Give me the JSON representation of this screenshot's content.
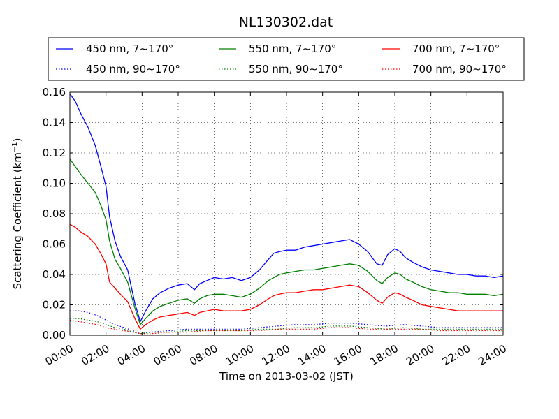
{
  "chart_data": {
    "type": "line",
    "title": "NL130302.dat",
    "xlabel": "Time on 2013-03-02 (JST)",
    "ylabel_main": "Scattering Coefficient (km",
    "ylabel_sup": "−1",
    "ylabel_close": ")",
    "xlim": [
      0,
      24
    ],
    "ylim": [
      0,
      0.16
    ],
    "x_ticks": [
      0,
      2,
      4,
      6,
      8,
      10,
      12,
      14,
      16,
      18,
      20,
      22,
      24
    ],
    "x_tick_labels": [
      "00:00",
      "02:00",
      "04:00",
      "06:00",
      "08:00",
      "10:00",
      "12:00",
      "14:00",
      "16:00",
      "18:00",
      "20:00",
      "22:00",
      "24:00"
    ],
    "y_ticks": [
      0,
      0.02,
      0.04,
      0.06,
      0.08,
      0.1,
      0.12,
      0.14,
      0.16
    ],
    "y_tick_labels": [
      "0.00",
      "0.02",
      "0.04",
      "0.06",
      "0.08",
      "0.10",
      "0.12",
      "0.14",
      "0.16"
    ],
    "grid": true,
    "legend_position": "top (above plot), 3 columns",
    "series": [
      {
        "name": "450 nm, 7∼170°",
        "color": "#0000ff",
        "style": "solid",
        "x": [
          0,
          0.3,
          0.6,
          1.0,
          1.4,
          1.7,
          2.0,
          2.2,
          2.5,
          2.8,
          3.2,
          3.6,
          3.9,
          4.2,
          4.6,
          5.0,
          5.5,
          6.0,
          6.5,
          6.9,
          7.2,
          7.6,
          8.0,
          8.5,
          9.0,
          9.5,
          10.0,
          10.5,
          11.0,
          11.3,
          11.6,
          12.0,
          12.5,
          13.0,
          13.5,
          14.0,
          14.5,
          15.0,
          15.5,
          16.0,
          16.5,
          17.0,
          17.3,
          17.6,
          18.0,
          18.3,
          18.6,
          19.0,
          19.5,
          20.0,
          20.5,
          21.0,
          21.5,
          22.0,
          22.5,
          23.0,
          23.5,
          24.0
        ],
        "y": [
          0.159,
          0.154,
          0.146,
          0.137,
          0.125,
          0.112,
          0.098,
          0.078,
          0.062,
          0.052,
          0.043,
          0.021,
          0.009,
          0.016,
          0.024,
          0.028,
          0.031,
          0.033,
          0.034,
          0.03,
          0.034,
          0.036,
          0.038,
          0.037,
          0.038,
          0.036,
          0.038,
          0.043,
          0.05,
          0.054,
          0.055,
          0.056,
          0.056,
          0.058,
          0.059,
          0.06,
          0.061,
          0.062,
          0.063,
          0.06,
          0.055,
          0.047,
          0.046,
          0.053,
          0.057,
          0.055,
          0.051,
          0.048,
          0.045,
          0.043,
          0.042,
          0.041,
          0.04,
          0.04,
          0.039,
          0.039,
          0.038,
          0.039
        ]
      },
      {
        "name": "450 nm, 90∼170°",
        "color": "#0000ff",
        "style": "dotted",
        "x": [
          0,
          0.5,
          1.0,
          1.5,
          2.0,
          2.5,
          3.0,
          3.5,
          3.9,
          4.5,
          5.5,
          6.5,
          7.5,
          8.5,
          9.5,
          10.5,
          11.5,
          12.5,
          13.5,
          14.5,
          15.5,
          16.5,
          17.5,
          18.5,
          19.5,
          20.5,
          21.5,
          22.5,
          23.5,
          24.0
        ],
        "y": [
          0.016,
          0.016,
          0.015,
          0.013,
          0.01,
          0.007,
          0.005,
          0.003,
          0.001,
          0.002,
          0.003,
          0.004,
          0.004,
          0.004,
          0.004,
          0.005,
          0.006,
          0.007,
          0.007,
          0.008,
          0.008,
          0.007,
          0.006,
          0.007,
          0.006,
          0.005,
          0.005,
          0.005,
          0.005,
          0.005
        ]
      },
      {
        "name": "550 nm, 7∼170°",
        "color": "#008000",
        "style": "solid",
        "x": [
          0,
          0.3,
          0.6,
          1.0,
          1.4,
          1.7,
          2.0,
          2.2,
          2.5,
          2.8,
          3.2,
          3.6,
          3.9,
          4.2,
          4.6,
          5.0,
          5.5,
          6.0,
          6.5,
          6.9,
          7.2,
          7.6,
          8.0,
          8.5,
          9.0,
          9.5,
          10.0,
          10.5,
          11.0,
          11.3,
          11.6,
          12.0,
          12.5,
          13.0,
          13.5,
          14.0,
          14.5,
          15.0,
          15.5,
          16.0,
          16.5,
          17.0,
          17.3,
          17.6,
          18.0,
          18.3,
          18.6,
          19.0,
          19.5,
          20.0,
          20.5,
          21.0,
          21.5,
          22.0,
          22.5,
          23.0,
          23.5,
          24.0
        ],
        "y": [
          0.116,
          0.111,
          0.106,
          0.1,
          0.094,
          0.086,
          0.076,
          0.062,
          0.05,
          0.044,
          0.035,
          0.018,
          0.007,
          0.011,
          0.016,
          0.019,
          0.021,
          0.023,
          0.024,
          0.021,
          0.024,
          0.026,
          0.027,
          0.027,
          0.026,
          0.025,
          0.027,
          0.031,
          0.036,
          0.038,
          0.04,
          0.041,
          0.042,
          0.043,
          0.043,
          0.044,
          0.045,
          0.046,
          0.047,
          0.046,
          0.042,
          0.036,
          0.034,
          0.038,
          0.041,
          0.04,
          0.037,
          0.035,
          0.032,
          0.03,
          0.029,
          0.028,
          0.028,
          0.027,
          0.027,
          0.027,
          0.026,
          0.027
        ]
      },
      {
        "name": "550 nm, 90∼170°",
        "color": "#008000",
        "style": "dotted",
        "x": [
          0,
          0.5,
          1.0,
          1.5,
          2.0,
          2.5,
          3.0,
          3.5,
          3.9,
          4.5,
          5.5,
          6.5,
          7.5,
          8.5,
          9.5,
          10.5,
          11.5,
          12.5,
          13.5,
          14.5,
          15.5,
          16.5,
          17.5,
          18.5,
          19.5,
          20.5,
          21.5,
          22.5,
          23.5,
          24.0
        ],
        "y": [
          0.011,
          0.011,
          0.01,
          0.009,
          0.007,
          0.005,
          0.004,
          0.002,
          0.001,
          0.002,
          0.002,
          0.003,
          0.003,
          0.003,
          0.003,
          0.004,
          0.004,
          0.005,
          0.005,
          0.006,
          0.006,
          0.005,
          0.004,
          0.005,
          0.004,
          0.004,
          0.004,
          0.004,
          0.004,
          0.004
        ]
      },
      {
        "name": "700 nm, 7∼170°",
        "color": "#ff0000",
        "style": "solid",
        "x": [
          0,
          0.3,
          0.6,
          1.0,
          1.4,
          1.7,
          2.0,
          2.2,
          2.5,
          2.8,
          3.2,
          3.6,
          3.9,
          4.2,
          4.6,
          5.0,
          5.5,
          6.0,
          6.5,
          6.9,
          7.2,
          7.6,
          8.0,
          8.5,
          9.0,
          9.5,
          10.0,
          10.5,
          11.0,
          11.3,
          11.6,
          12.0,
          12.5,
          13.0,
          13.5,
          14.0,
          14.5,
          15.0,
          15.5,
          16.0,
          16.5,
          17.0,
          17.3,
          17.6,
          18.0,
          18.3,
          18.6,
          19.0,
          19.5,
          20.0,
          20.5,
          21.0,
          21.5,
          22.0,
          22.5,
          23.0,
          23.5,
          24.0
        ],
        "y": [
          0.073,
          0.071,
          0.068,
          0.065,
          0.06,
          0.054,
          0.047,
          0.035,
          0.031,
          0.027,
          0.022,
          0.011,
          0.004,
          0.007,
          0.01,
          0.012,
          0.013,
          0.014,
          0.015,
          0.013,
          0.015,
          0.016,
          0.017,
          0.016,
          0.016,
          0.016,
          0.017,
          0.02,
          0.024,
          0.026,
          0.027,
          0.028,
          0.028,
          0.029,
          0.03,
          0.03,
          0.031,
          0.032,
          0.033,
          0.032,
          0.028,
          0.023,
          0.021,
          0.025,
          0.028,
          0.027,
          0.025,
          0.023,
          0.02,
          0.019,
          0.018,
          0.017,
          0.016,
          0.016,
          0.016,
          0.016,
          0.016,
          0.016
        ]
      },
      {
        "name": "700 nm, 90∼170°",
        "color": "#ff0000",
        "style": "dotted",
        "x": [
          0,
          0.5,
          1.0,
          1.5,
          2.0,
          2.5,
          3.0,
          3.5,
          3.9,
          4.5,
          5.5,
          6.5,
          7.5,
          8.5,
          9.5,
          10.5,
          11.5,
          12.5,
          13.5,
          14.5,
          15.5,
          16.5,
          17.5,
          18.5,
          19.5,
          20.5,
          21.5,
          22.5,
          23.5,
          24.0
        ],
        "y": [
          0.01,
          0.009,
          0.008,
          0.007,
          0.005,
          0.004,
          0.003,
          0.002,
          0.001,
          0.001,
          0.002,
          0.002,
          0.003,
          0.003,
          0.003,
          0.003,
          0.004,
          0.004,
          0.004,
          0.005,
          0.005,
          0.004,
          0.004,
          0.004,
          0.004,
          0.003,
          0.003,
          0.003,
          0.003,
          0.003
        ]
      }
    ]
  }
}
